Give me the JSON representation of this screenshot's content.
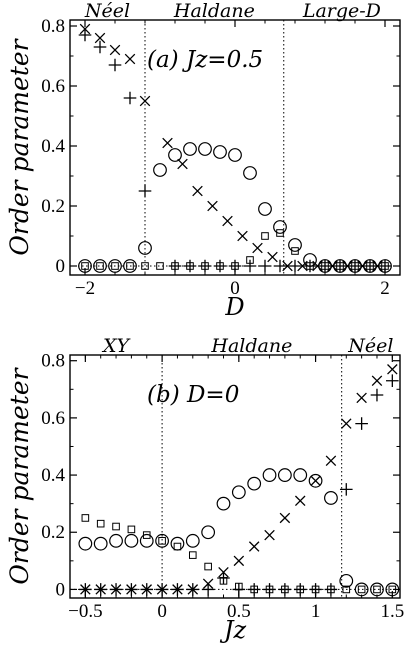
{
  "chart_data": [
    {
      "type": "scatter",
      "annotation": "(a) Jz=0.5",
      "xlabel": "D",
      "ylabel": "Order parameter",
      "xlim": [
        -2.2,
        2.2
      ],
      "ylim": [
        -0.03,
        0.82
      ],
      "x_ticks": [
        -2,
        0,
        2
      ],
      "x_tick_labels": [
        "−2",
        "0",
        "2"
      ],
      "y_ticks": [
        0,
        0.2,
        0.4,
        0.6,
        0.8
      ],
      "y_tick_labels": [
        "0",
        "0.2",
        "0.4",
        "0.6",
        "0.8"
      ],
      "regions": [
        {
          "label": "Néel",
          "from": -2.2,
          "to": -1.2
        },
        {
          "label": "Haldane",
          "from": -1.2,
          "to": 0.65
        },
        {
          "label": "Large-D",
          "from": 0.65,
          "to": 2.2
        }
      ],
      "boundaries": [
        -1.2,
        0.65
      ],
      "grid": false,
      "series": [
        {
          "marker": "circle",
          "points": [
            [
              -2.0,
              0
            ],
            [
              -1.8,
              0
            ],
            [
              -1.6,
              0
            ],
            [
              -1.4,
              0
            ],
            [
              -1.2,
              0.06
            ],
            [
              -1.0,
              0.32
            ],
            [
              -0.8,
              0.37
            ],
            [
              -0.6,
              0.39
            ],
            [
              -0.4,
              0.39
            ],
            [
              -0.2,
              0.38
            ],
            [
              0.0,
              0.37
            ],
            [
              0.2,
              0.31
            ],
            [
              0.4,
              0.19
            ],
            [
              0.6,
              0.13
            ],
            [
              0.8,
              0.07
            ],
            [
              1.0,
              0.02
            ],
            [
              1.2,
              0
            ],
            [
              1.4,
              0
            ],
            [
              1.6,
              0
            ],
            [
              1.8,
              0
            ],
            [
              2.0,
              0
            ]
          ]
        },
        {
          "marker": "cross",
          "points": [
            [
              -2.0,
              0.79
            ],
            [
              -1.8,
              0.76
            ],
            [
              -1.6,
              0.72
            ],
            [
              -1.4,
              0.69
            ],
            [
              -1.2,
              0.55
            ],
            [
              -0.9,
              0.41
            ],
            [
              -0.7,
              0.34
            ],
            [
              -0.5,
              0.25
            ],
            [
              -0.3,
              0.2
            ],
            [
              -0.1,
              0.15
            ],
            [
              0.1,
              0.1
            ],
            [
              0.3,
              0.06
            ],
            [
              0.5,
              0.03
            ],
            [
              0.7,
              0
            ],
            [
              0.9,
              0
            ],
            [
              1.1,
              0
            ],
            [
              1.3,
              0
            ],
            [
              1.5,
              0
            ],
            [
              1.7,
              0
            ],
            [
              1.9,
              0
            ]
          ]
        },
        {
          "marker": "plus",
          "points": [
            [
              -2.0,
              0.77
            ],
            [
              -1.8,
              0.73
            ],
            [
              -1.6,
              0.67
            ],
            [
              -1.4,
              0.56
            ],
            [
              -1.2,
              0.25
            ],
            [
              -0.8,
              0
            ],
            [
              -0.6,
              0
            ],
            [
              -0.4,
              0
            ],
            [
              -0.2,
              0
            ],
            [
              0.0,
              0
            ],
            [
              0.2,
              0
            ],
            [
              0.4,
              0
            ],
            [
              0.6,
              0
            ],
            [
              0.8,
              0
            ],
            [
              1.0,
              0
            ],
            [
              1.2,
              0
            ],
            [
              1.4,
              0
            ],
            [
              1.6,
              0
            ],
            [
              1.8,
              0
            ],
            [
              2.0,
              0
            ]
          ]
        },
        {
          "marker": "square",
          "points": [
            [
              -2.0,
              0
            ],
            [
              -1.8,
              0
            ],
            [
              -1.6,
              0
            ],
            [
              -1.4,
              0
            ],
            [
              -1.2,
              0
            ],
            [
              -1.0,
              0
            ],
            [
              -0.8,
              0
            ],
            [
              -0.6,
              0
            ],
            [
              -0.4,
              0
            ],
            [
              -0.2,
              0
            ],
            [
              0.0,
              0
            ],
            [
              0.2,
              0.02
            ],
            [
              0.4,
              0.1
            ],
            [
              0.6,
              0.11
            ],
            [
              0.8,
              0.05
            ],
            [
              1.0,
              0
            ],
            [
              1.2,
              0
            ],
            [
              1.4,
              0
            ],
            [
              1.6,
              0
            ],
            [
              1.8,
              0
            ],
            [
              2.0,
              0
            ]
          ]
        }
      ]
    },
    {
      "type": "scatter",
      "annotation": "(b) D=0",
      "xlabel": "Jz",
      "ylabel": "Order parameter",
      "xlim": [
        -0.6,
        1.55
      ],
      "ylim": [
        -0.03,
        0.82
      ],
      "x_ticks": [
        -0.5,
        0,
        0.5,
        1,
        1.5
      ],
      "x_tick_labels": [
        "−0.5",
        "0",
        "0.5",
        "1",
        "1.5"
      ],
      "y_ticks": [
        0,
        0.2,
        0.4,
        0.6,
        0.8
      ],
      "y_tick_labels": [
        "0",
        "0.2",
        "0.4",
        "0.6",
        "0.8"
      ],
      "regions": [
        {
          "label": "XY",
          "from": -0.6,
          "to": 0
        },
        {
          "label": "Haldane",
          "from": 0,
          "to": 1.17
        },
        {
          "label": "Néel",
          "from": 1.17,
          "to": 1.55
        }
      ],
      "boundaries": [
        0,
        1.17
      ],
      "grid": false,
      "series": [
        {
          "marker": "circle",
          "points": [
            [
              -0.5,
              0.16
            ],
            [
              -0.4,
              0.16
            ],
            [
              -0.3,
              0.17
            ],
            [
              -0.2,
              0.17
            ],
            [
              -0.1,
              0.17
            ],
            [
              0.0,
              0.17
            ],
            [
              0.1,
              0.16
            ],
            [
              0.2,
              0.17
            ],
            [
              0.3,
              0.2
            ],
            [
              0.4,
              0.3
            ],
            [
              0.5,
              0.34
            ],
            [
              0.6,
              0.37
            ],
            [
              0.7,
              0.4
            ],
            [
              0.8,
              0.4
            ],
            [
              0.9,
              0.4
            ],
            [
              1.0,
              0.38
            ],
            [
              1.1,
              0.32
            ],
            [
              1.2,
              0.03
            ],
            [
              1.3,
              0
            ],
            [
              1.4,
              0
            ],
            [
              1.5,
              0
            ]
          ]
        },
        {
          "marker": "cross",
          "points": [
            [
              -0.5,
              0
            ],
            [
              -0.4,
              0
            ],
            [
              -0.3,
              0
            ],
            [
              -0.2,
              0
            ],
            [
              -0.1,
              0
            ],
            [
              0.0,
              0
            ],
            [
              0.1,
              0
            ],
            [
              0.2,
              0
            ],
            [
              0.3,
              0.02
            ],
            [
              0.4,
              0.06
            ],
            [
              0.5,
              0.1
            ],
            [
              0.6,
              0.15
            ],
            [
              0.7,
              0.19
            ],
            [
              0.8,
              0.25
            ],
            [
              0.9,
              0.31
            ],
            [
              1.0,
              0.38
            ],
            [
              1.1,
              0.45
            ],
            [
              1.2,
              0.58
            ],
            [
              1.3,
              0.67
            ],
            [
              1.4,
              0.73
            ],
            [
              1.5,
              0.77
            ]
          ]
        },
        {
          "marker": "plus",
          "points": [
            [
              -0.5,
              0
            ],
            [
              -0.4,
              0
            ],
            [
              -0.3,
              0
            ],
            [
              -0.2,
              0
            ],
            [
              -0.1,
              0
            ],
            [
              0.0,
              0
            ],
            [
              0.1,
              0
            ],
            [
              0.2,
              0
            ],
            [
              0.3,
              0
            ],
            [
              0.4,
              0.04
            ],
            [
              0.5,
              0
            ],
            [
              0.6,
              0
            ],
            [
              0.7,
              0
            ],
            [
              0.8,
              0
            ],
            [
              0.9,
              0
            ],
            [
              1.0,
              0
            ],
            [
              1.1,
              0
            ],
            [
              1.2,
              0.35
            ],
            [
              1.3,
              0.58
            ],
            [
              1.4,
              0.68
            ],
            [
              1.5,
              0.73
            ]
          ]
        },
        {
          "marker": "square",
          "points": [
            [
              -0.5,
              0.25
            ],
            [
              -0.4,
              0.23
            ],
            [
              -0.3,
              0.22
            ],
            [
              -0.2,
              0.21
            ],
            [
              -0.1,
              0.19
            ],
            [
              0.0,
              0.17
            ],
            [
              0.1,
              0.15
            ],
            [
              0.2,
              0.12
            ],
            [
              0.3,
              0.08
            ],
            [
              0.4,
              0.03
            ],
            [
              0.5,
              0.01
            ],
            [
              0.6,
              0
            ],
            [
              0.7,
              0
            ],
            [
              0.8,
              0
            ],
            [
              0.9,
              0
            ],
            [
              1.0,
              0
            ],
            [
              1.1,
              0
            ],
            [
              1.2,
              0
            ],
            [
              1.3,
              0
            ],
            [
              1.4,
              0
            ],
            [
              1.5,
              0
            ]
          ]
        }
      ]
    }
  ]
}
